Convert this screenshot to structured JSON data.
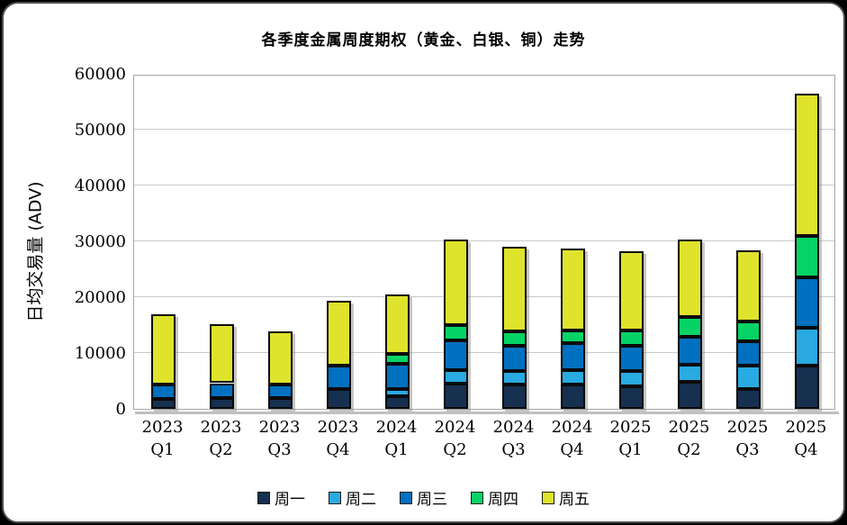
{
  "title": "各季度金属周度期权（黄金、白银、铜）走势",
  "y_axis": {
    "label": "日均交易量 (ADV)",
    "ticks": [
      "60000",
      "50000",
      "40000",
      "30000",
      "20000",
      "10000",
      "0"
    ]
  },
  "chart_data": {
    "type": "bar",
    "stacked": true,
    "title": "各季度金属周度期权（黄金、白银、铜）走势",
    "xlabel": "",
    "ylabel": "日均交易量 (ADV)",
    "ylim": [
      0,
      60000
    ],
    "ytick_interval": 10000,
    "grid": true,
    "legend_position": "bottom",
    "categories": [
      "2023 Q1",
      "2023 Q2",
      "2023 Q3",
      "2023 Q4",
      "2024 Q1",
      "2024 Q2",
      "2024 Q3",
      "2024 Q4",
      "2025 Q1",
      "2025 Q2",
      "2025 Q3",
      "2025 Q4"
    ],
    "series": [
      {
        "name": "周一",
        "color": "#163050",
        "values": [
          1800,
          1900,
          2000,
          3500,
          2200,
          4500,
          4300,
          4400,
          4000,
          4800,
          3600,
          7700
        ]
      },
      {
        "name": "周二",
        "color": "#29AAE1",
        "values": [
          0,
          0,
          0,
          0,
          1400,
          2400,
          2400,
          2500,
          2700,
          3100,
          4100,
          6800
        ]
      },
      {
        "name": "周三",
        "color": "#0070C0",
        "values": [
          2600,
          2700,
          2400,
          4200,
          4400,
          5300,
          4600,
          4900,
          4600,
          5000,
          4400,
          9000
        ]
      },
      {
        "name": "周四",
        "color": "#05D365",
        "values": [
          0,
          0,
          0,
          0,
          1800,
          2800,
          2500,
          2300,
          2700,
          3600,
          3500,
          7500
        ]
      },
      {
        "name": "周五",
        "color": "#DFE32B",
        "values": [
          12500,
          10600,
          9500,
          11700,
          10700,
          15400,
          15200,
          14600,
          14300,
          13900,
          12800,
          25400
        ]
      }
    ]
  }
}
